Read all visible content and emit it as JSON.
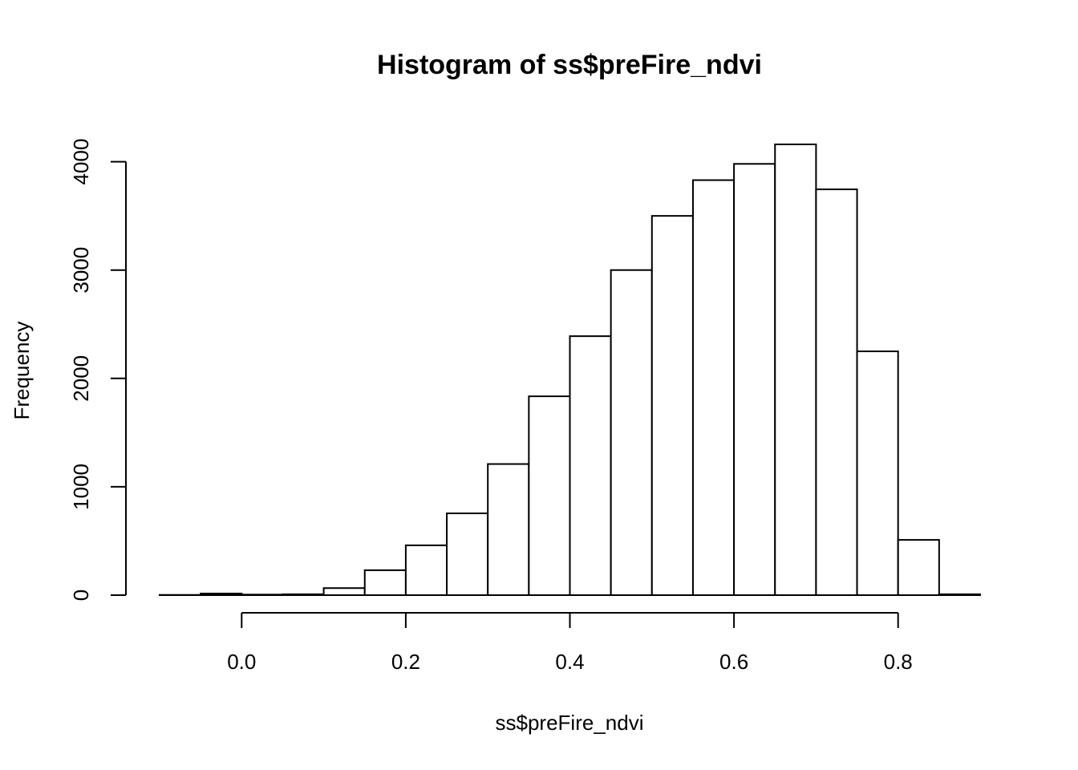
{
  "chart_data": {
    "type": "bar",
    "title": "Histogram of ss$preFire_ndvi",
    "xlabel": "ss$preFire_ndvi",
    "ylabel": "Frequency",
    "breaks": [
      -0.1,
      -0.05,
      0.0,
      0.05,
      0.1,
      0.15,
      0.2,
      0.25,
      0.3,
      0.35,
      0.4,
      0.45,
      0.5,
      0.55,
      0.6,
      0.65,
      0.7,
      0.75,
      0.8,
      0.85,
      0.9
    ],
    "values": [
      2,
      15,
      5,
      8,
      65,
      230,
      460,
      755,
      1210,
      1835,
      2390,
      3000,
      3500,
      3830,
      3980,
      4160,
      3745,
      2250,
      510,
      8
    ],
    "xlim": [
      -0.1,
      0.9
    ],
    "ylim": [
      0,
      4160
    ],
    "x_ticks": [
      {
        "value": 0.0,
        "label": "0.0"
      },
      {
        "value": 0.2,
        "label": "0.2"
      },
      {
        "value": 0.4,
        "label": "0.4"
      },
      {
        "value": 0.6,
        "label": "0.6"
      },
      {
        "value": 0.8,
        "label": "0.8"
      }
    ],
    "y_ticks": [
      {
        "value": 0,
        "label": "0"
      },
      {
        "value": 1000,
        "label": "1000"
      },
      {
        "value": 2000,
        "label": "2000"
      },
      {
        "value": 3000,
        "label": "3000"
      },
      {
        "value": 4000,
        "label": "4000"
      }
    ],
    "grid": false,
    "colors": {
      "bar_fill": "#ffffff",
      "bar_stroke": "#000000",
      "axis": "#000000"
    }
  }
}
